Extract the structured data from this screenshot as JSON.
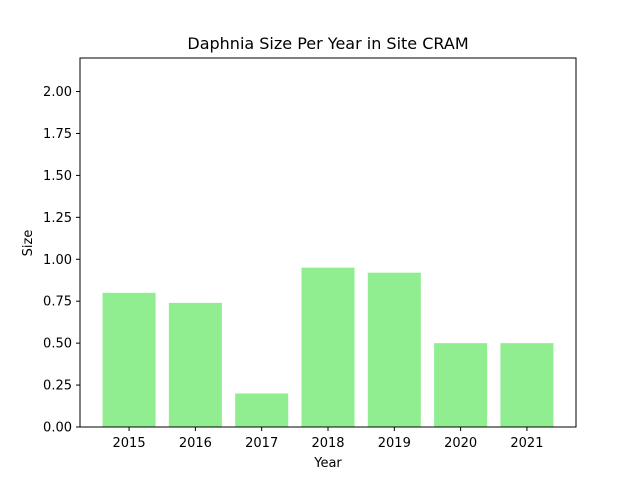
{
  "chart_data": {
    "type": "bar",
    "title": "Daphnia Size Per Year in Site CRAM",
    "xlabel": "Year",
    "ylabel": "Size",
    "categories": [
      "2015",
      "2016",
      "2017",
      "2018",
      "2019",
      "2020",
      "2021"
    ],
    "values": [
      0.8,
      0.74,
      0.2,
      0.95,
      0.92,
      0.5,
      0.5
    ],
    "ylim": [
      0,
      2.2
    ],
    "yticks": [
      "0.00",
      "0.25",
      "0.50",
      "0.75",
      "1.00",
      "1.25",
      "1.50",
      "1.75",
      "2.00"
    ],
    "bar_color": "#90ee90",
    "grid": false,
    "legend": "none"
  }
}
